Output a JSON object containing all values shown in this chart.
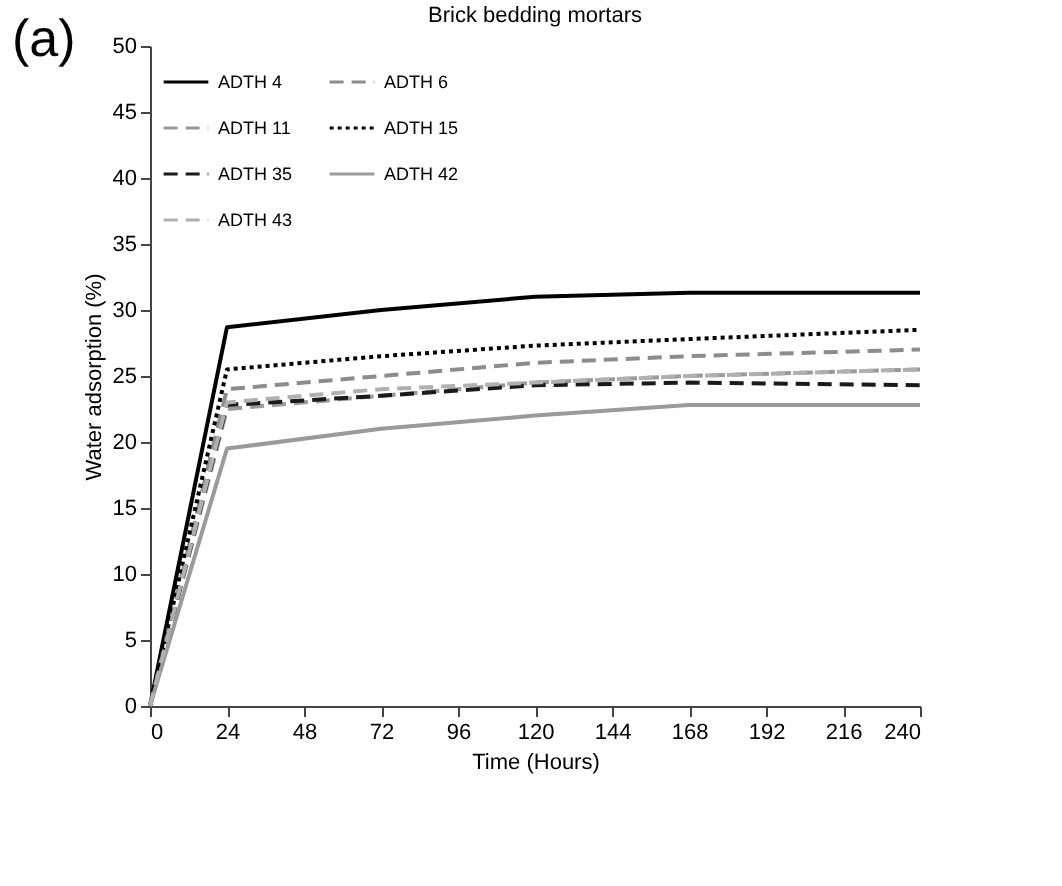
{
  "chart_data": {
    "type": "line",
    "title": "Brick bedding mortars",
    "xlabel": "Time (Hours)",
    "ylabel": "Water adsorption (%)",
    "annotations": [
      "(a)"
    ],
    "x": [
      0,
      24,
      72,
      120,
      168,
      240
    ],
    "series": [
      {
        "name": "ADTH 4",
        "color": "#000000",
        "line_style": "solid",
        "values": [
          0,
          28.7,
          30,
          31,
          31.3,
          31.3
        ]
      },
      {
        "name": "ADTH 6",
        "color": "#8c8c8c",
        "line_style": "dashed",
        "values": [
          0,
          24,
          25,
          26,
          26.5,
          27
        ]
      },
      {
        "name": "ADTH 11",
        "color": "#9a9a9a",
        "line_style": "dashed",
        "values": [
          0,
          22.5,
          23.5,
          24.5,
          25,
          25.5
        ]
      },
      {
        "name": "ADTH 15",
        "color": "#000000",
        "line_style": "dotted",
        "values": [
          0,
          25.5,
          26.5,
          27.3,
          27.8,
          28.5
        ]
      },
      {
        "name": "ADTH 35",
        "color": "#1a1a1a",
        "line_style": "dashed",
        "values": [
          0,
          22.8,
          23.5,
          24.3,
          24.5,
          24.3
        ]
      },
      {
        "name": "ADTH 42",
        "color": "#9a9a9a",
        "line_style": "solid",
        "values": [
          0,
          19.5,
          21,
          22,
          22.8,
          22.8
        ]
      },
      {
        "name": "ADTH 43",
        "color": "#b0b0b0",
        "line_style": "dashed",
        "values": [
          0,
          23,
          24,
          24.5,
          25,
          25.5
        ]
      }
    ],
    "xlim": [
      0,
      240
    ],
    "xticks": [
      0,
      24,
      48,
      72,
      96,
      120,
      144,
      168,
      192,
      216,
      240
    ],
    "ylim": [
      0,
      50
    ],
    "yticks": [
      0,
      5,
      10,
      15,
      20,
      25,
      30,
      35,
      40,
      45,
      50
    ],
    "grid": false,
    "legend": "top left",
    "marker": "none"
  }
}
